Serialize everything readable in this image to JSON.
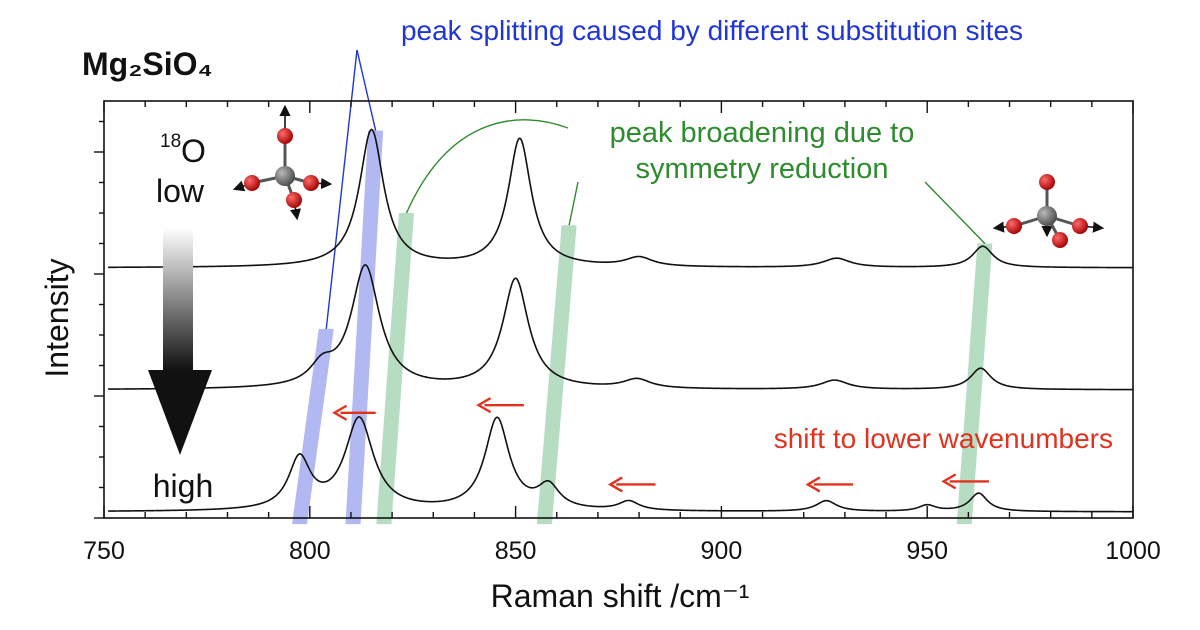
{
  "chart_data": {
    "type": "line",
    "title": "Mg₂SiO₄",
    "xlabel": "Raman shift /cm⁻¹",
    "ylabel": "Intensity",
    "xlim": [
      750,
      1000
    ],
    "xticks": [
      750,
      800,
      850,
      900,
      950,
      1000
    ],
    "x_minor_step": 10,
    "ylim": [
      0,
      1
    ],
    "y_ticks_labeled": false,
    "grid": false,
    "legend": "none",
    "series": [
      {
        "baseline": 0.82,
        "peaks": [
          {
            "x": 815.0,
            "h": 0.45,
            "w": 3.6
          },
          {
            "x": 851.0,
            "h": 0.42,
            "w": 3.4
          },
          {
            "x": 880.0,
            "h": 0.03,
            "w": 4.0
          },
          {
            "x": 928.0,
            "h": 0.03,
            "w": 4.0
          },
          {
            "x": 963.5,
            "h": 0.07,
            "w": 3.0
          }
        ]
      },
      {
        "baseline": 0.42,
        "peaks": [
          {
            "x": 813.5,
            "h": 0.4,
            "w": 4.2
          },
          {
            "x": 803.0,
            "h": 0.06,
            "w": 3.5
          },
          {
            "x": 850.0,
            "h": 0.36,
            "w": 3.8
          },
          {
            "x": 879.5,
            "h": 0.03,
            "w": 4.0
          },
          {
            "x": 927.5,
            "h": 0.03,
            "w": 4.0
          },
          {
            "x": 963.0,
            "h": 0.07,
            "w": 3.0
          }
        ]
      },
      {
        "baseline": 0.02,
        "peaks": [
          {
            "x": 797.5,
            "h": 0.165,
            "w": 3.2
          },
          {
            "x": 812.0,
            "h": 0.3,
            "w": 4.2
          },
          {
            "x": 845.5,
            "h": 0.3,
            "w": 3.6
          },
          {
            "x": 858.0,
            "h": 0.075,
            "w": 3.2
          },
          {
            "x": 877.5,
            "h": 0.03,
            "w": 3.0
          },
          {
            "x": 925.5,
            "h": 0.035,
            "w": 3.0
          },
          {
            "x": 950.0,
            "h": 0.02,
            "w": 2.5
          },
          {
            "x": 962.5,
            "h": 0.06,
            "w": 2.6
          }
        ]
      }
    ],
    "bands": [
      {
        "group": "blue",
        "color": "#a3abf0",
        "x_top": 816.0,
        "x_bottom": 810.5,
        "y_top": 1.27,
        "y_bottom": -0.02
      },
      {
        "group": "blue",
        "color": "#a3abf0",
        "x_top": 804.0,
        "x_bottom": 797.5,
        "y_top": 0.62,
        "y_bottom": -0.02
      },
      {
        "group": "green",
        "color": "#a9d6b7",
        "x_top": 823.5,
        "x_bottom": 818.0,
        "y_top": 1.0,
        "y_bottom": -0.02
      },
      {
        "group": "green",
        "color": "#a9d6b7",
        "x_top": 863.0,
        "x_bottom": 857.0,
        "y_top": 0.96,
        "y_bottom": -0.02
      },
      {
        "group": "green",
        "color": "#a9d6b7",
        "x_top": 964.0,
        "x_bottom": 959.0,
        "y_top": 0.9,
        "y_bottom": -0.02
      }
    ],
    "arrows": [
      {
        "x_from": 816,
        "x_to": 806,
        "y": 0.345
      },
      {
        "x_from": 852,
        "x_to": 841,
        "y": 0.37
      },
      {
        "x_from": 884,
        "x_to": 873,
        "y": 0.11
      },
      {
        "x_from": 932,
        "x_to": 921,
        "y": 0.11
      },
      {
        "x_from": 965,
        "x_to": 954,
        "y": 0.12
      }
    ],
    "annotations": {
      "blue_text": "peak splitting caused by different substitution sites",
      "green_text_line1": "peak broadening due to",
      "green_text_line2": "symmetry reduction",
      "red_text": "shift to lower wavenumbers",
      "isotope_label": "O",
      "isotope_mass": "18",
      "low_label": "low",
      "high_label": "high"
    },
    "colors": {
      "blue_text": "#1f35d6",
      "green_text": "#2e8b2e",
      "red": "#e0321e",
      "line": "#111111",
      "oxygen": "#c01010",
      "silicon": "#707070"
    }
  }
}
